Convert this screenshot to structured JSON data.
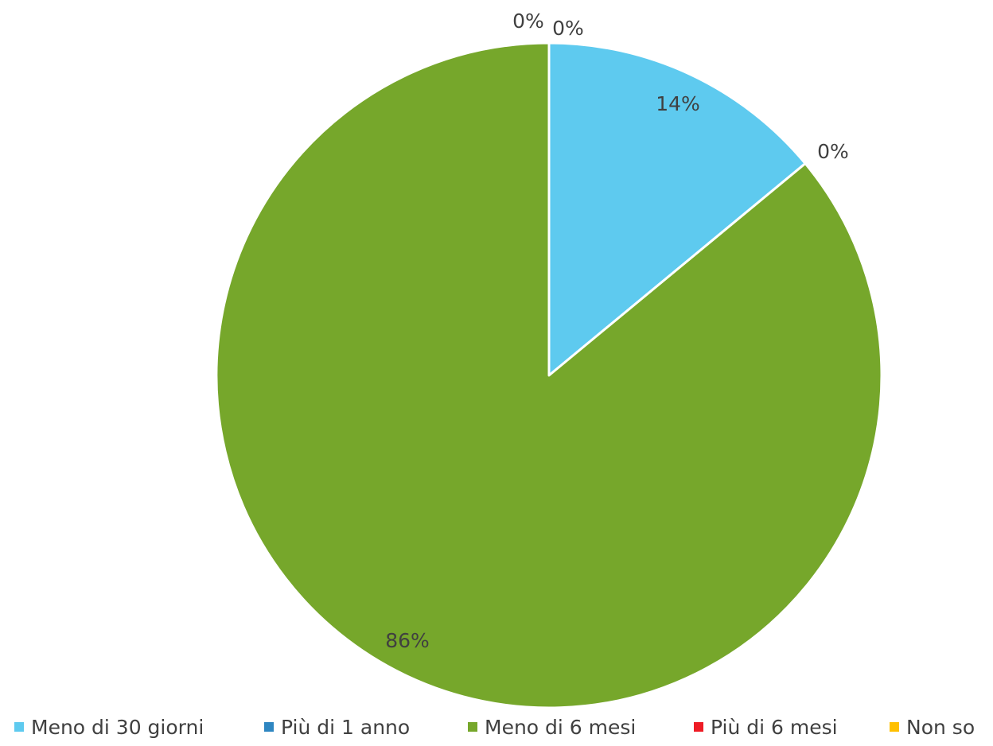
{
  "chart_data": {
    "type": "pie",
    "categories": [
      "Meno di 30 giorni",
      "Più di 1 anno",
      "Meno di 6 mesi",
      "Più di 6 mesi",
      "Non so"
    ],
    "values": [
      14,
      0,
      86,
      0,
      0
    ],
    "data_labels": [
      "14%",
      "0%",
      "86%",
      "0%",
      "0%"
    ],
    "colors": [
      "#5ECAEF",
      "#2E86C1",
      "#76A72B",
      "#EE1C25",
      "#FFC000"
    ],
    "legend_position": "bottom",
    "title": ""
  }
}
